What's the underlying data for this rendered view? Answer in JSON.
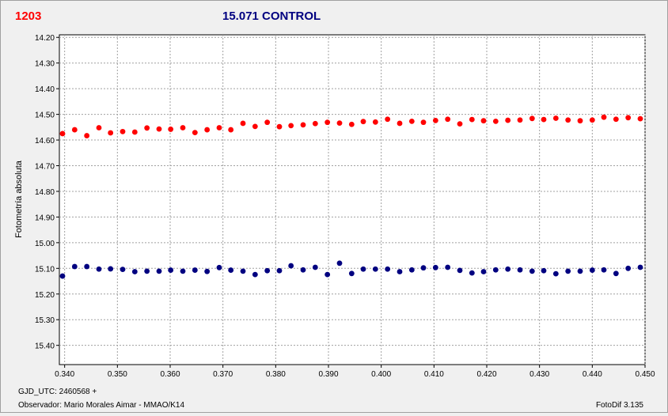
{
  "header": {
    "left_label": "1203",
    "title": "15.071 CONTROL",
    "left_label_color": "#ff0000",
    "title_color": "#000080"
  },
  "footer": {
    "gjd": "GJD_UTC: 2460568 +",
    "observer": "Observador: Mario Morales Aimar - MMAO/K14",
    "software": "FotoDif 3.135"
  },
  "chart_data": {
    "type": "scatter",
    "title": "15.071 CONTROL",
    "xlabel": "",
    "ylabel": "Fotometría absoluta",
    "xlim": [
      0.339,
      0.45
    ],
    "ylim": [
      15.475,
      14.19
    ],
    "y_inverted": true,
    "grid": true,
    "x_ticks": [
      "0.340",
      "0.350",
      "0.360",
      "0.370",
      "0.380",
      "0.390",
      "0.400",
      "0.410",
      "0.420",
      "0.430",
      "0.440",
      "0.450"
    ],
    "y_ticks": [
      "14.20",
      "14.30",
      "14.40",
      "14.50",
      "14.60",
      "14.70",
      "14.80",
      "14.90",
      "15.00",
      "15.10",
      "15.20",
      "15.30",
      "15.40"
    ],
    "series": [
      {
        "color": "#ff0000",
        "x": [
          0.3396,
          0.3419,
          0.3442,
          0.3465,
          0.3487,
          0.351,
          0.3533,
          0.3556,
          0.3579,
          0.3601,
          0.3624,
          0.3647,
          0.367,
          0.3693,
          0.3715,
          0.3738,
          0.3761,
          0.3784,
          0.3807,
          0.3829,
          0.3852,
          0.3875,
          0.3898,
          0.3921,
          0.3944,
          0.3966,
          0.3989,
          0.4012,
          0.4035,
          0.4058,
          0.408,
          0.4103,
          0.4126,
          0.4149,
          0.4172,
          0.4194,
          0.4217,
          0.424,
          0.4263,
          0.4286,
          0.4308,
          0.4331,
          0.4354,
          0.4377,
          0.44,
          0.4422,
          0.4445,
          0.4468,
          0.4491
        ],
        "y": [
          14.575,
          14.56,
          14.583,
          14.552,
          14.572,
          14.567,
          14.569,
          14.553,
          14.557,
          14.558,
          14.552,
          14.571,
          14.56,
          14.552,
          14.56,
          14.535,
          14.547,
          14.531,
          14.548,
          14.544,
          14.541,
          14.536,
          14.531,
          14.534,
          14.539,
          14.528,
          14.53,
          14.519,
          14.535,
          14.527,
          14.531,
          14.524,
          14.519,
          14.537,
          14.52,
          14.525,
          14.527,
          14.523,
          14.522,
          14.516,
          14.52,
          14.515,
          14.522,
          14.525,
          14.522,
          14.511,
          14.519,
          14.513,
          14.517
        ]
      },
      {
        "color": "#000080",
        "x": [
          0.3396,
          0.3419,
          0.3442,
          0.3465,
          0.3487,
          0.351,
          0.3533,
          0.3556,
          0.3579,
          0.3601,
          0.3624,
          0.3647,
          0.367,
          0.3693,
          0.3715,
          0.3738,
          0.3761,
          0.3784,
          0.3807,
          0.3829,
          0.3852,
          0.3875,
          0.3898,
          0.3921,
          0.3944,
          0.3966,
          0.3989,
          0.4012,
          0.4035,
          0.4058,
          0.408,
          0.4103,
          0.4126,
          0.4149,
          0.4172,
          0.4194,
          0.4217,
          0.424,
          0.4263,
          0.4286,
          0.4308,
          0.4331,
          0.4354,
          0.4377,
          0.44,
          0.4422,
          0.4445,
          0.4468,
          0.4491
        ],
        "y": [
          15.13,
          15.093,
          15.093,
          15.103,
          15.102,
          15.104,
          15.113,
          15.111,
          15.111,
          15.107,
          15.111,
          15.107,
          15.112,
          15.097,
          15.107,
          15.111,
          15.124,
          15.109,
          15.109,
          15.09,
          15.106,
          15.096,
          15.124,
          15.08,
          15.12,
          15.103,
          15.103,
          15.103,
          15.113,
          15.106,
          15.098,
          15.097,
          15.096,
          15.108,
          15.118,
          15.113,
          15.106,
          15.103,
          15.106,
          15.111,
          15.109,
          15.121,
          15.111,
          15.111,
          15.107,
          15.106,
          15.12,
          15.1,
          15.096
        ]
      }
    ]
  }
}
